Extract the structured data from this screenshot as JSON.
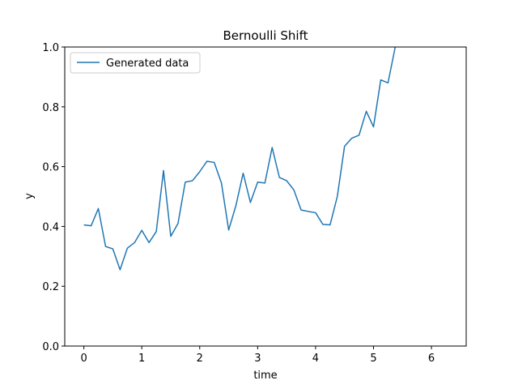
{
  "chart_data": {
    "type": "line",
    "title": "Bernoulli Shift",
    "xlabel": "time",
    "ylabel": "y",
    "xlim": [
      -0.33,
      6.6
    ],
    "ylim": [
      0,
      1
    ],
    "xticks": [
      0,
      1,
      2,
      3,
      4,
      5,
      6
    ],
    "xtick_labels": [
      "0",
      "1",
      "2",
      "3",
      "4",
      "5",
      "6"
    ],
    "yticks": [
      0.0,
      0.2,
      0.4,
      0.6,
      0.8,
      1.0
    ],
    "ytick_labels": [
      "0.0",
      "0.2",
      "0.4",
      "0.6",
      "0.8",
      "1.0"
    ],
    "grid": false,
    "legend_position": "top-left",
    "series": [
      {
        "name": "Generated data",
        "color": "#1f77b4",
        "x": [
          0.0,
          0.125,
          0.25,
          0.375,
          0.5,
          0.625,
          0.75,
          0.875,
          1.0,
          1.125,
          1.25,
          1.375,
          1.5,
          1.625,
          1.75,
          1.875,
          2.0,
          2.125,
          2.25,
          2.375,
          2.5,
          2.625,
          2.75,
          2.875,
          3.0,
          3.125,
          3.25,
          3.375,
          3.5,
          3.625,
          3.75,
          3.875,
          4.0,
          4.125,
          4.25,
          4.375,
          4.5,
          4.625,
          4.75,
          4.875,
          5.0,
          5.125,
          5.25,
          5.375,
          5.5
        ],
        "y": [
          0.405,
          0.402,
          0.46,
          0.333,
          0.325,
          0.255,
          0.327,
          0.346,
          0.387,
          0.346,
          0.383,
          0.587,
          0.367,
          0.41,
          0.548,
          0.553,
          0.583,
          0.618,
          0.614,
          0.545,
          0.388,
          0.47,
          0.578,
          0.48,
          0.548,
          0.545,
          0.664,
          0.564,
          0.553,
          0.522,
          0.455,
          0.45,
          0.446,
          0.407,
          0.405,
          0.5,
          0.668,
          0.695,
          0.705,
          0.785,
          0.733,
          0.89,
          0.88,
          1.0,
          1.05
        ]
      }
    ]
  }
}
